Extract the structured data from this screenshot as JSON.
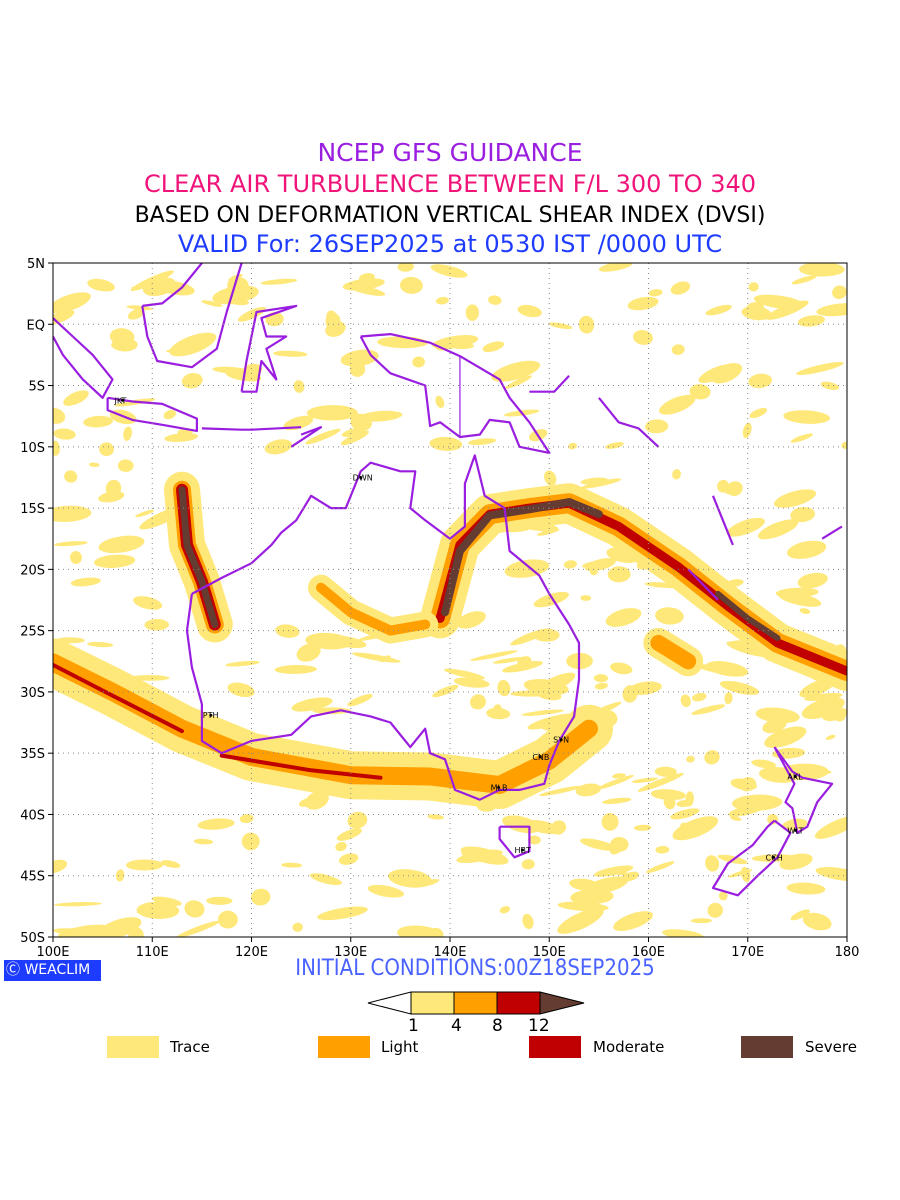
{
  "titles": {
    "line1": "NCEP GFS GUIDANCE",
    "line2": "CLEAR AIR TURBULENCE BETWEEN F/L 300 TO 340",
    "line3": "BASED ON DEFORMATION VERTICAL SHEAR INDEX (DVSI)",
    "line4": "VALID For: 26SEP2025 at 0530 IST /0000 UTC"
  },
  "map": {
    "lon_range": [
      100,
      180
    ],
    "lat_range": [
      -50,
      5
    ],
    "lat_ticks": [
      {
        "v": 5,
        "label": "5N"
      },
      {
        "v": 0,
        "label": "EQ"
      },
      {
        "v": -5,
        "label": "5S"
      },
      {
        "v": -10,
        "label": "10S"
      },
      {
        "v": -15,
        "label": "15S"
      },
      {
        "v": -20,
        "label": "20S"
      },
      {
        "v": -25,
        "label": "25S"
      },
      {
        "v": -30,
        "label": "30S"
      },
      {
        "v": -35,
        "label": "35S"
      },
      {
        "v": -40,
        "label": "40S"
      },
      {
        "v": -45,
        "label": "45S"
      },
      {
        "v": -50,
        "label": "50S"
      }
    ],
    "lon_ticks": [
      {
        "v": 100,
        "label": "100E"
      },
      {
        "v": 110,
        "label": "110E"
      },
      {
        "v": 120,
        "label": "120E"
      },
      {
        "v": 130,
        "label": "130E"
      },
      {
        "v": 140,
        "label": "140E"
      },
      {
        "v": 150,
        "label": "150E"
      },
      {
        "v": 160,
        "label": "160E"
      },
      {
        "v": 170,
        "label": "170E"
      },
      {
        "v": 180,
        "label": "180"
      }
    ],
    "cities": [
      {
        "code": "JKT",
        "lon": 107,
        "lat": -6.2
      },
      {
        "code": "DWN",
        "lon": 131,
        "lat": -12.5
      },
      {
        "code": "PTH",
        "lon": 115.9,
        "lat": -31.9
      },
      {
        "code": "SYN",
        "lon": 151.2,
        "lat": -33.9
      },
      {
        "code": "CNB",
        "lon": 149.1,
        "lat": -35.3
      },
      {
        "code": "MLB",
        "lon": 144.9,
        "lat": -37.8
      },
      {
        "code": "HBT",
        "lon": 147.3,
        "lat": -42.9
      },
      {
        "code": "AKL",
        "lon": 174.8,
        "lat": -36.9
      },
      {
        "code": "WLT",
        "lon": 174.8,
        "lat": -41.3
      },
      {
        "code": "CCH",
        "lon": 172.6,
        "lat": -43.5
      }
    ]
  },
  "footer": {
    "brand": "WEACLIM",
    "initial_conditions": "INITIAL CONDITIONS:00Z18SEP2025"
  },
  "colorbar": {
    "thresholds": [
      "1",
      "4",
      "8",
      "12"
    ],
    "colors": [
      "#ffe87a",
      "#ffa000",
      "#c00000",
      "#643c32"
    ]
  },
  "legend": [
    {
      "label": "Trace",
      "color": "#ffe87a"
    },
    {
      "label": "Light",
      "color": "#ffa000"
    },
    {
      "label": "Moderate",
      "color": "#c00000"
    },
    {
      "label": "Severe",
      "color": "#643c32"
    }
  ]
}
